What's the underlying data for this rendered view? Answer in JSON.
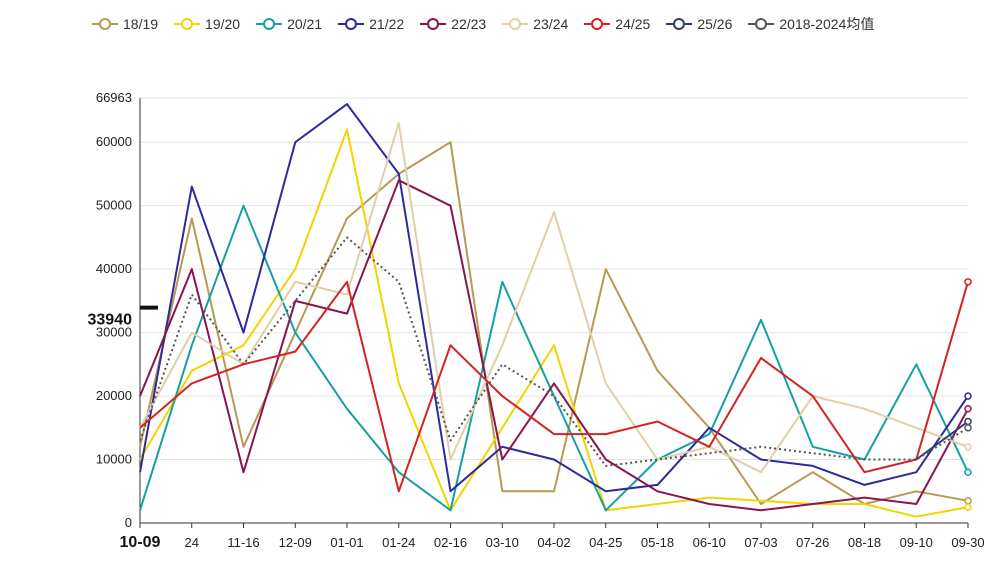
{
  "chart_data": {
    "type": "line",
    "title": "",
    "xlabel": "",
    "ylabel": "",
    "ylim": [
      0,
      66963
    ],
    "y_ticks": [
      0,
      10000,
      20000,
      30000,
      40000,
      50000,
      60000
    ],
    "y_max_label": "66963",
    "highlight_value": 33940,
    "highlight_label": "33940",
    "x_ticks": [
      "10-09",
      "10-24",
      "11-16",
      "12-09",
      "01-01",
      "01-24",
      "02-16",
      "03-10",
      "04-02",
      "04-25",
      "05-18",
      "06-10",
      "07-03",
      "07-26",
      "08-18",
      "09-10",
      "09-30"
    ],
    "x_tick_labels_shown": [
      "10-09",
      "24",
      "11-16",
      "12-09",
      "01-01",
      "01-24",
      "02-16",
      "03-10",
      "04-02",
      "04-25",
      "05-18",
      "06-10",
      "07-03",
      "07-26",
      "08-18",
      "09-10",
      "09-30"
    ],
    "legend_position": "top",
    "grid": "horizontal",
    "series": [
      {
        "name": "18/19",
        "color": "#b59a55",
        "dash": "",
        "values": [
          12000,
          48000,
          12000,
          30000,
          48000,
          55000,
          60000,
          5000,
          5000,
          40000,
          24000,
          15000,
          3000,
          8000,
          3000,
          5000,
          3500
        ]
      },
      {
        "name": "19/20",
        "color": "#f2d400",
        "dash": "",
        "values": [
          10000,
          24000,
          28000,
          40000,
          62000,
          22000,
          2000,
          15000,
          28000,
          2000,
          3000,
          4000,
          3500,
          3000,
          3000,
          1000,
          2500
        ]
      },
      {
        "name": "20/21",
        "color": "#15a0a4",
        "dash": "",
        "values": [
          2000,
          28000,
          50000,
          30000,
          18000,
          8000,
          2000,
          38000,
          20000,
          2000,
          10000,
          14000,
          32000,
          12000,
          10000,
          25000,
          8000
        ]
      },
      {
        "name": "21/22",
        "color": "#2f2a9c",
        "dash": "",
        "values": [
          8000,
          53000,
          30000,
          60000,
          66000,
          55000,
          5000,
          12000,
          10000,
          5000,
          6000,
          15000,
          10000,
          9000,
          6000,
          8000,
          20000
        ]
      },
      {
        "name": "22/23",
        "color": "#8a1450",
        "dash": "",
        "values": [
          20000,
          40000,
          8000,
          35000,
          33000,
          54000,
          50000,
          10000,
          22000,
          10000,
          5000,
          3000,
          2000,
          3000,
          4000,
          3000,
          18000
        ]
      },
      {
        "name": "23/24",
        "color": "#e0cfa8",
        "dash": "",
        "values": [
          15000,
          30000,
          25000,
          38000,
          36000,
          63000,
          10000,
          28000,
          49000,
          22000,
          10000,
          12000,
          8000,
          20000,
          18000,
          15000,
          12000
        ]
      },
      {
        "name": "24/25",
        "color": "#d62222",
        "dash": "",
        "values": [
          15000,
          22000,
          25000,
          27000,
          38000,
          5000,
          28000,
          20000,
          14000,
          14000,
          16000,
          12000,
          26000,
          20000,
          8000,
          10000,
          38000
        ]
      },
      {
        "name": "25/26",
        "color": "#2b3e74",
        "dash": "",
        "values": [
          null,
          null,
          null,
          null,
          null,
          null,
          null,
          null,
          null,
          null,
          null,
          null,
          null,
          null,
          null,
          10000,
          16000
        ]
      },
      {
        "name": "2018-2024均值",
        "color": "#555555",
        "dash": "2,3",
        "values": [
          13000,
          36000,
          25000,
          35000,
          45000,
          38000,
          13000,
          25000,
          20000,
          9000,
          10000,
          11000,
          12000,
          11000,
          10000,
          10000,
          15000
        ]
      }
    ]
  }
}
